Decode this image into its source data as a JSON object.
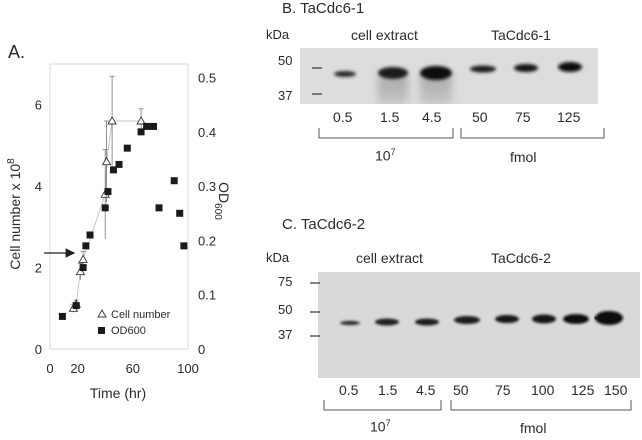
{
  "panel_a": {
    "label": "A.",
    "chart_data": {
      "type": "scatter",
      "xlabel": "Time (hr)",
      "ylabel_left": "Cell number x 10",
      "ylabel_left_exp": "8",
      "ylabel_right": "OD",
      "ylabel_right_sub": "600",
      "xlim": [
        0,
        100
      ],
      "ylim_left": [
        0,
        7
      ],
      "ylim_right": [
        0,
        0.525
      ],
      "x_ticks": [
        "0",
        "20",
        "60",
        "100"
      ],
      "y_left_ticks": [
        "0",
        "2",
        "4",
        "6"
      ],
      "y_right_ticks": [
        "0",
        "0.1",
        "0.2",
        "0.3",
        "0.4",
        "0.5"
      ],
      "legend": [
        "Cell number",
        "OD600"
      ],
      "legend_position": "bottom-right",
      "annotation": "arrow at cell number 2.4",
      "series": [
        {
          "name": "Cell number",
          "axis": "left",
          "marker": "open-triangle",
          "points": [
            {
              "x": 17,
              "y": 1.0,
              "err": 0.1
            },
            {
              "x": 19,
              "y": 1.1,
              "err": 0.1
            },
            {
              "x": 22,
              "y": 1.9,
              "err": 0.2
            },
            {
              "x": 24,
              "y": 2.2,
              "err": 0.2
            },
            {
              "x": 40,
              "y": 3.8,
              "err": 1.1
            },
            {
              "x": 41,
              "y": 4.6,
              "err": 1.0
            },
            {
              "x": 45,
              "y": 5.6,
              "err": 1.1
            },
            {
              "x": 66,
              "y": 5.6,
              "err": 0.3
            }
          ]
        },
        {
          "name": "OD600",
          "axis": "right",
          "marker": "filled-square",
          "points": [
            {
              "x": 9,
              "y": 0.06
            },
            {
              "x": 19,
              "y": 0.08
            },
            {
              "x": 24,
              "y": 0.15
            },
            {
              "x": 26,
              "y": 0.19
            },
            {
              "x": 29,
              "y": 0.21
            },
            {
              "x": 40,
              "y": 0.26
            },
            {
              "x": 42,
              "y": 0.29
            },
            {
              "x": 46,
              "y": 0.33
            },
            {
              "x": 50,
              "y": 0.34
            },
            {
              "x": 56,
              "y": 0.37
            },
            {
              "x": 66,
              "y": 0.4
            },
            {
              "x": 70,
              "y": 0.41
            },
            {
              "x": 75,
              "y": 0.41
            },
            {
              "x": 79,
              "y": 0.26
            },
            {
              "x": 90,
              "y": 0.31
            },
            {
              "x": 94,
              "y": 0.25
            },
            {
              "x": 97,
              "y": 0.19
            }
          ]
        }
      ]
    }
  },
  "panel_b": {
    "title": "B. TaCdc6-1",
    "kda_label": "kDa",
    "markers": [
      "50",
      "37"
    ],
    "group_labels": [
      "cell extract",
      "TaCdc6-1"
    ],
    "lane_labels": [
      "0.5",
      "1.5",
      "4.5",
      "50",
      "75",
      "125"
    ],
    "bottom_labels": [
      "10",
      "fmol"
    ],
    "bottom_exp": "7"
  },
  "panel_c": {
    "title": "C. TaCdc6-2",
    "kda_label": "kDa",
    "markers": [
      "75",
      "50",
      "37"
    ],
    "group_labels": [
      "cell extract",
      "TaCdc6-2"
    ],
    "lane_labels": [
      "0.5",
      "1.5",
      "4.5",
      "50",
      "75",
      "100",
      "125",
      "150"
    ],
    "bottom_labels": [
      "10",
      "fmol"
    ],
    "bottom_exp": "7"
  }
}
